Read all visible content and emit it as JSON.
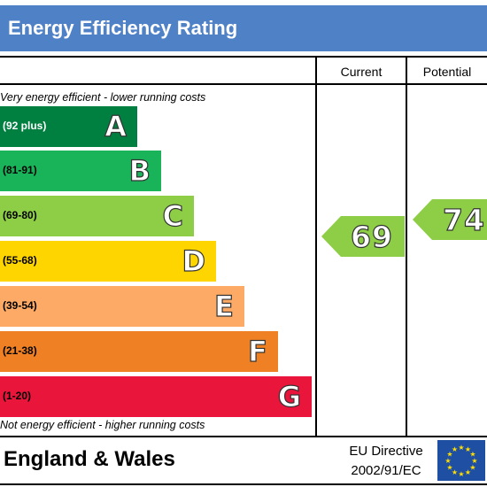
{
  "title": "Energy Efficiency Rating",
  "columns": {
    "current": "Current",
    "potential": "Potential"
  },
  "top_note": "Very energy efficient - lower running costs",
  "bottom_note": "Not energy efficient - higher running costs",
  "bands": [
    {
      "letter": "A",
      "range": "(92 plus)",
      "color": "#008040"
    },
    {
      "letter": "B",
      "range": "(81-91)",
      "color": "#19b459"
    },
    {
      "letter": "C",
      "range": "(69-80)",
      "color": "#8dce46"
    },
    {
      "letter": "D",
      "range": "(55-68)",
      "color": "#ffd500"
    },
    {
      "letter": "E",
      "range": "(39-54)",
      "color": "#fcaa65"
    },
    {
      "letter": "F",
      "range": "(21-38)",
      "color": "#ef8023"
    },
    {
      "letter": "G",
      "range": "(1-20)",
      "color": "#e9153b"
    }
  ],
  "ratings": {
    "current": "69",
    "potential": "74",
    "arrow_color": "#8dce46"
  },
  "footer": {
    "region": "England & Wales",
    "directive_line1": "EU Directive",
    "directive_line2": "2002/91/EC",
    "flag_color": "#1f4fa3",
    "star_color": "#ffdd00"
  }
}
